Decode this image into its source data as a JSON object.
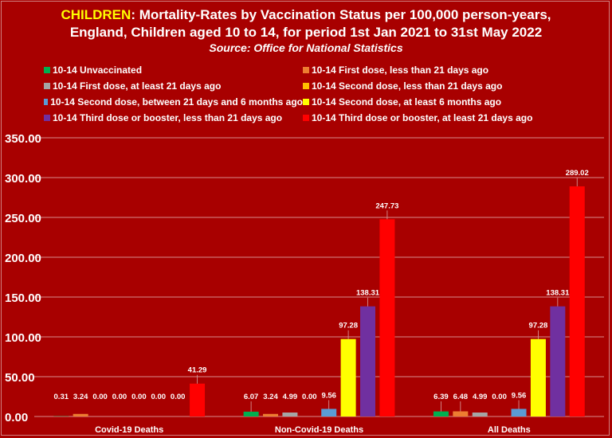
{
  "chart_data": {
    "type": "bar",
    "title_highlight": "CHILDREN",
    "title_line1": ": Mortality-Rates by Vaccination Status per 100,000 person-years,",
    "title_line2": "England, Children aged 10 to 14, for period 1st Jan 2021 to 31st May 2022",
    "subtitle": "Source: Office for National Statistics",
    "categories": [
      "Covid-19 Deaths",
      "Non-Covid-19 Deaths",
      "All Deaths"
    ],
    "ylim": [
      0,
      350
    ],
    "yticks": [
      "0.00",
      "50.00",
      "100.00",
      "150.00",
      "200.00",
      "250.00",
      "300.00",
      "350.00"
    ],
    "grid": true,
    "legend_position": "top",
    "series": [
      {
        "name": "10-14 Unvaccinated",
        "color": "#00b050",
        "values": [
          0.31,
          6.07,
          6.39
        ]
      },
      {
        "name": "10-14 First dose, less than 21 days ago",
        "color": "#ed7d31",
        "values": [
          3.24,
          3.24,
          6.48
        ]
      },
      {
        "name": "10-14 First dose, at least 21 days ago",
        "color": "#a5a5a5",
        "values": [
          0.0,
          4.99,
          4.99
        ]
      },
      {
        "name": "10-14 Second dose, less than 21 days ago",
        "color": "#ffc000",
        "values": [
          0.0,
          0.0,
          0.0
        ]
      },
      {
        "name": "10-14 Second dose, between 21 days and 6 months ago",
        "color": "#5b9bd5",
        "values": [
          0.0,
          9.56,
          9.56
        ]
      },
      {
        "name": "10-14 Second dose, at least 6 months ago",
        "color": "#ffff00",
        "values": [
          0.0,
          97.28,
          97.28
        ]
      },
      {
        "name": "10-14 Third dose or booster, less than 21 days ago",
        "color": "#7030a0",
        "values": [
          0.0,
          138.31,
          138.31
        ]
      },
      {
        "name": "10-14 Third dose or booster, at least 21 days ago",
        "color": "#ff0000",
        "values": [
          41.29,
          247.73,
          289.02
        ]
      }
    ]
  }
}
